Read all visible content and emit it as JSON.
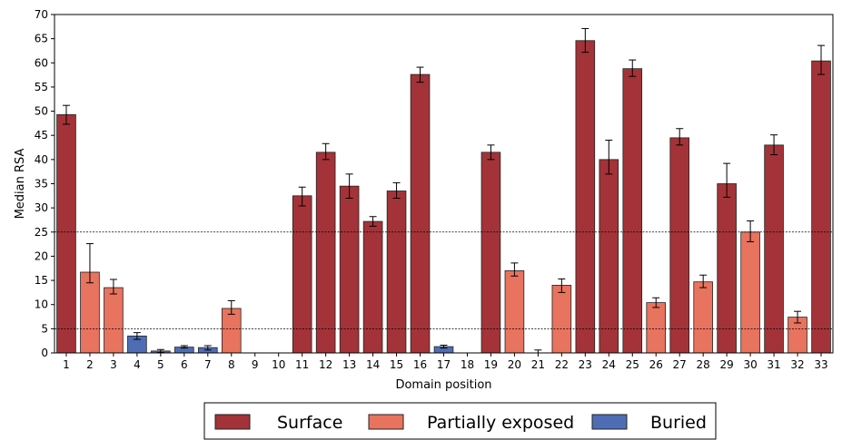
{
  "chart_data": {
    "type": "bar",
    "xlabel": "Domain position",
    "ylabel": "Median RSA",
    "ylim": [
      0,
      70
    ],
    "yticks": [
      0,
      5,
      10,
      15,
      20,
      25,
      30,
      35,
      40,
      45,
      50,
      55,
      60,
      65,
      70
    ],
    "reference_lines": [
      5,
      25
    ],
    "categories": [
      "1",
      "2",
      "3",
      "4",
      "5",
      "6",
      "7",
      "8",
      "9",
      "10",
      "11",
      "12",
      "13",
      "14",
      "15",
      "16",
      "17",
      "18",
      "19",
      "20",
      "21",
      "22",
      "23",
      "24",
      "25",
      "26",
      "27",
      "28",
      "29",
      "30",
      "31",
      "32",
      "33"
    ],
    "values": [
      49.3,
      16.7,
      13.5,
      3.5,
      0.4,
      1.2,
      1.1,
      9.2,
      0,
      0,
      32.5,
      41.5,
      34.5,
      27.2,
      33.5,
      57.6,
      1.3,
      0,
      41.5,
      17.0,
      0,
      14.0,
      64.6,
      40.0,
      58.8,
      10.4,
      44.5,
      14.7,
      35.0,
      25.0,
      43.0,
      7.4,
      60.4
    ],
    "err_low": [
      47.3,
      14.5,
      12.2,
      2.8,
      0.1,
      1.0,
      0.6,
      8.0,
      0,
      0,
      30.4,
      40.0,
      32.0,
      26.2,
      32.0,
      56.0,
      1.0,
      0,
      40.0,
      15.9,
      0,
      12.5,
      62.2,
      37.0,
      57.2,
      9.4,
      43.0,
      13.5,
      32.2,
      23.0,
      41.0,
      6.2,
      57.6
    ],
    "err_high": [
      51.2,
      22.6,
      15.2,
      4.2,
      0.7,
      1.5,
      1.5,
      10.8,
      0,
      0,
      34.3,
      43.3,
      37.0,
      28.2,
      35.2,
      59.1,
      1.6,
      0,
      43.0,
      18.6,
      0.6,
      15.3,
      67.1,
      44.0,
      60.6,
      11.4,
      46.4,
      16.1,
      39.2,
      27.3,
      45.1,
      8.6,
      63.6
    ],
    "categories_class": [
      "Surface",
      "Partially exposed",
      "Partially exposed",
      "Buried",
      "Buried",
      "Buried",
      "Buried",
      "Partially exposed",
      "Buried",
      "Buried",
      "Surface",
      "Surface",
      "Surface",
      "Surface",
      "Surface",
      "Surface",
      "Buried",
      "Buried",
      "Surface",
      "Partially exposed",
      "Buried",
      "Partially exposed",
      "Surface",
      "Surface",
      "Surface",
      "Partially exposed",
      "Surface",
      "Partially exposed",
      "Surface",
      "Partially exposed",
      "Surface",
      "Partially exposed",
      "Surface"
    ],
    "legend": [
      {
        "name": "Surface",
        "color": "#a33338"
      },
      {
        "name": "Partially exposed",
        "color": "#e8735f"
      },
      {
        "name": "Buried",
        "color": "#4f6db5"
      }
    ],
    "legend_position": "bottom-center",
    "grid": false
  }
}
